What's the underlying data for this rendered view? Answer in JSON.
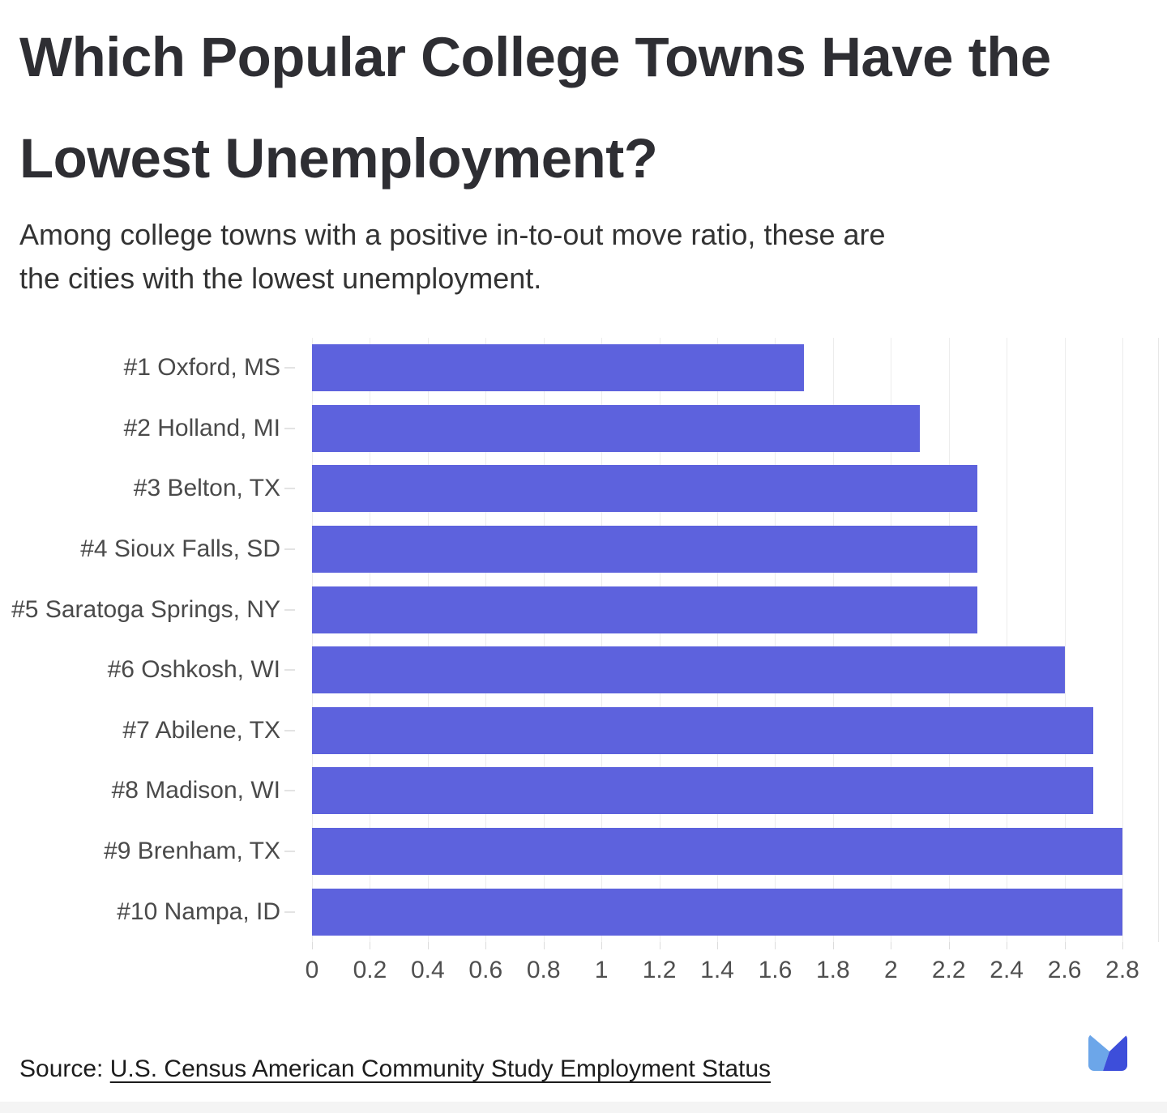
{
  "header": {
    "title": "Which Popular College Towns Have the Lowest Unemployment?",
    "title_lines": [
      "Which Popular College Towns Have the",
      "Lowest Unemployment?"
    ],
    "subtitle": "Among college towns with a positive in-to-out move ratio, these are the cities with the lowest unemployment.",
    "subtitle_lines": [
      "Among college towns with a positive in-to-out move ratio, these are",
      "the cities with the lowest unemployment."
    ]
  },
  "chart_data": {
    "type": "bar",
    "orientation": "horizontal",
    "title": "Which Popular College Towns Have the Lowest Unemployment?",
    "categories": [
      "#1 Oxford, MS",
      "#2 Holland, MI",
      "#3 Belton, TX",
      "#4 Sioux Falls, SD",
      "#5 Saratoga Springs, NY",
      "#6 Oshkosh, WI",
      "#7 Abilene, TX",
      "#8 Madison, WI",
      "#9 Brenham, TX",
      "#10 Nampa, ID"
    ],
    "values": [
      1.7,
      2.1,
      2.3,
      2.3,
      2.3,
      2.6,
      2.7,
      2.7,
      2.8,
      2.8
    ],
    "xlabel": "",
    "ylabel": "",
    "xlim": [
      0,
      2.8
    ],
    "x_tick_labels": [
      "0",
      "0.2",
      "0.4",
      "0.6",
      "0.8",
      "1",
      "1.2",
      "1.4",
      "1.6",
      "1.8",
      "2",
      "2.2",
      "2.4",
      "2.6",
      "2.8"
    ],
    "grid": true,
    "legend": false,
    "bar_color": "#5D62DD"
  },
  "footer": {
    "source_prefix": "Source: ",
    "source_link_text": "U.S. Census American Community Study Employment Status"
  },
  "logo": {
    "name": "brand-logo",
    "left_color": "#6CA6E9",
    "right_color": "#3D4EDA"
  }
}
